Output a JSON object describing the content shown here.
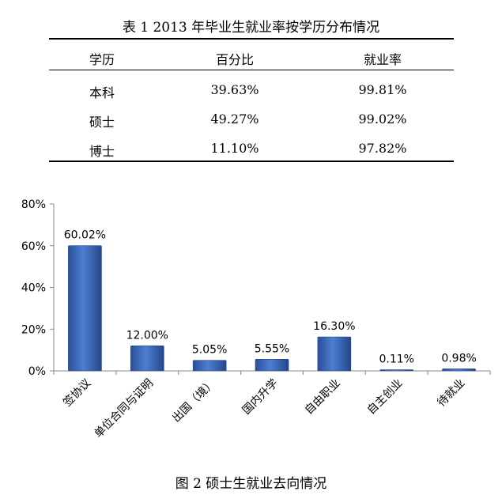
{
  "table": {
    "title": "表 1 2013 年毕业生就业率按学历分布情况",
    "headers": [
      "学历",
      "百分比",
      "就业率"
    ],
    "rows": [
      [
        "本科",
        "39.63%",
        "99.81%"
      ],
      [
        "硕士",
        "49.27%",
        "99.02%"
      ],
      [
        "博士",
        "11.10%",
        "97.82%"
      ]
    ]
  },
  "chart_data": {
    "type": "bar",
    "title": "",
    "xlabel": "",
    "ylabel": "",
    "categories": [
      "签协议",
      "单位合同与证明",
      "出国（境）",
      "国内升学",
      "自由职业",
      "自主创业",
      "待就业"
    ],
    "values": [
      60.02,
      12.0,
      5.05,
      5.55,
      16.3,
      0.11,
      0.98
    ],
    "data_labels": [
      "60.02%",
      "12.00%",
      "5.05%",
      "5.55%",
      "16.30%",
      "0.11%",
      "0.98%"
    ],
    "y_ticks": [
      "0%",
      "20%",
      "40%",
      "60%",
      "80%"
    ],
    "ylim": [
      0,
      80
    ],
    "grid": false,
    "legend": "none",
    "bar_color": "#3a66b8"
  },
  "figure": {
    "caption": "图 2 硕士生就业去向情况"
  }
}
